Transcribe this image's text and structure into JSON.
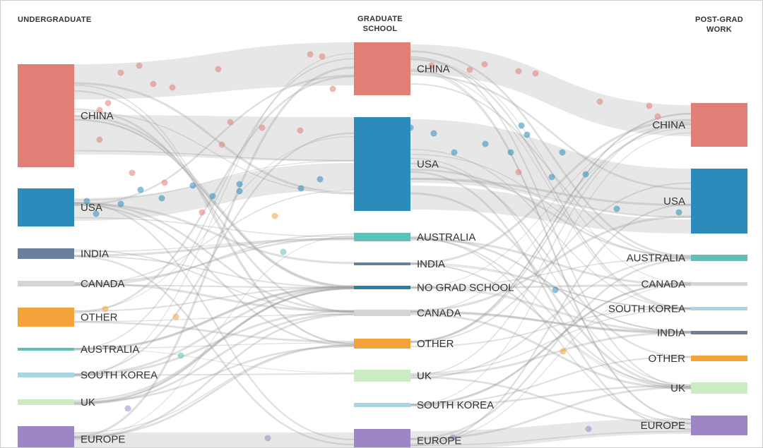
{
  "columns": [
    {
      "key": "undergrad",
      "lines": [
        "UNDERGRADUATE"
      ]
    },
    {
      "key": "grad",
      "lines": [
        "GRADUATE",
        "SCHOOL"
      ]
    },
    {
      "key": "post",
      "lines": [
        "POST-GRAD",
        "WORK"
      ]
    }
  ],
  "colors": {
    "china": "#e07f75",
    "usa": "#2b8bbb",
    "india": "#6a7f9c",
    "canada": "#d4d4d4",
    "other": "#f4a23a",
    "australia": "#5cc1bb",
    "south_korea": "#a9d6e0",
    "uk": "#cdebc3",
    "europe": "#9e85c6",
    "no_grad_school": "#2b7ea8",
    "flow": "#9a9a9a"
  },
  "nodes": {
    "undergrad": [
      {
        "id": "u_china",
        "label": "CHINA",
        "color_key": "china"
      },
      {
        "id": "u_usa",
        "label": "USA",
        "color_key": "usa"
      },
      {
        "id": "u_india",
        "label": "INDIA",
        "color_key": "india"
      },
      {
        "id": "u_canada",
        "label": "CANADA",
        "color_key": "canada"
      },
      {
        "id": "u_other",
        "label": "OTHER",
        "color_key": "other"
      },
      {
        "id": "u_australia",
        "label": "AUSTRALIA",
        "color_key": "australia"
      },
      {
        "id": "u_skorea",
        "label": "SOUTH KOREA",
        "color_key": "south_korea"
      },
      {
        "id": "u_uk",
        "label": "UK",
        "color_key": "uk"
      },
      {
        "id": "u_europe",
        "label": "EUROPE",
        "color_key": "europe"
      }
    ],
    "grad": [
      {
        "id": "g_china",
        "label": "CHINA",
        "color_key": "china"
      },
      {
        "id": "g_usa",
        "label": "USA",
        "color_key": "usa"
      },
      {
        "id": "g_australia",
        "label": "AUSTRALIA",
        "color_key": "australia"
      },
      {
        "id": "g_india",
        "label": "INDIA",
        "color_key": "india"
      },
      {
        "id": "g_nograd",
        "label": "NO GRAD SCHOOL",
        "color_key": "no_grad_school"
      },
      {
        "id": "g_canada",
        "label": "CANADA",
        "color_key": "canada"
      },
      {
        "id": "g_other",
        "label": "OTHER",
        "color_key": "other"
      },
      {
        "id": "g_uk",
        "label": "UK",
        "color_key": "uk"
      },
      {
        "id": "g_skorea",
        "label": "SOUTH KOREA",
        "color_key": "south_korea"
      },
      {
        "id": "g_europe",
        "label": "EUROPE",
        "color_key": "europe"
      }
    ],
    "post": [
      {
        "id": "p_china",
        "label": "CHINA",
        "color_key": "china"
      },
      {
        "id": "p_usa",
        "label": "USA",
        "color_key": "usa"
      },
      {
        "id": "p_australia",
        "label": "AUSTRALIA",
        "color_key": "australia"
      },
      {
        "id": "p_canada",
        "label": "CANADA",
        "color_key": "canada"
      },
      {
        "id": "p_skorea",
        "label": "SOUTH KOREA",
        "color_key": "south_korea"
      },
      {
        "id": "p_india",
        "label": "INDIA",
        "color_key": "india"
      },
      {
        "id": "p_other",
        "label": "OTHER",
        "color_key": "other"
      },
      {
        "id": "p_uk",
        "label": "UK",
        "color_key": "uk"
      },
      {
        "id": "p_europe",
        "label": "EUROPE",
        "color_key": "europe"
      }
    ]
  }
}
